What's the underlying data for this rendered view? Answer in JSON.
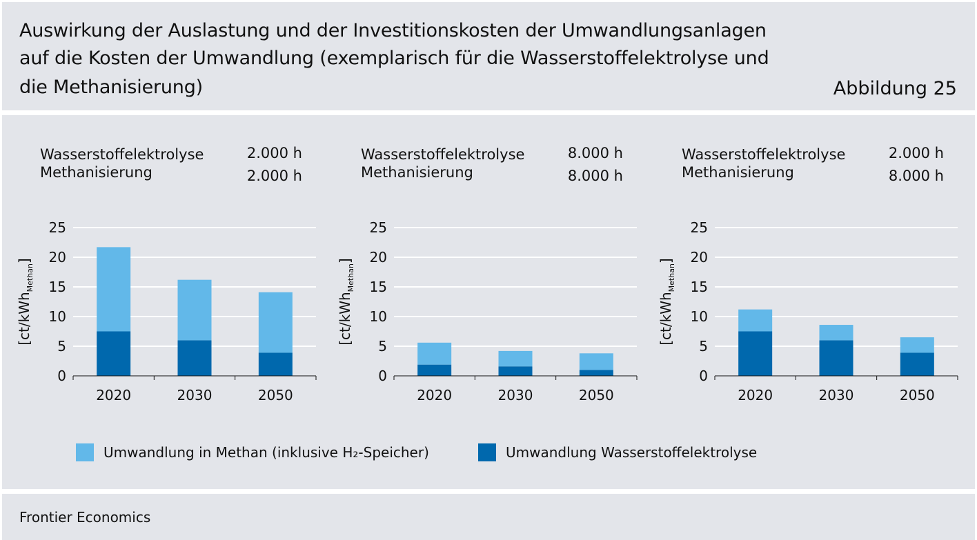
{
  "header": {
    "title_lines": [
      "Auswirkung der Auslastung und der Investitionskosten der Umwandlungsanlagen",
      "auf die Kosten der Umwandlung (exemplarisch für die Wasserstoffelektrolyse und",
      "die Methanisierung)"
    ],
    "figure_number": "Abbildung 25"
  },
  "colors": {
    "methan": "#62b8e9",
    "elektrolyse": "#0068ad",
    "grid": "#ffffff",
    "axis": "#111111"
  },
  "chart_data": [
    {
      "type": "bar",
      "stacked": true,
      "scenario": [
        {
          "label": "Wasserstoffelektrolyse",
          "value": "2.000 h"
        },
        {
          "label": "Methanisierung",
          "value": "2.000 h"
        }
      ],
      "ylabel_main": "[ct/kWh",
      "ylabel_sub": "Methan",
      "ylabel_end": "]",
      "ylim": [
        0,
        25
      ],
      "yticks": [
        0,
        5,
        10,
        15,
        20,
        25
      ],
      "categories": [
        "2020",
        "2030",
        "2050"
      ],
      "series": [
        {
          "name": "Umwandlung Wasserstoffelektrolyse",
          "color_key": "elektrolyse",
          "values": [
            7.5,
            6.0,
            3.9
          ]
        },
        {
          "name": "Umwandlung in Methan (inklusive H₂-Speicher)",
          "color_key": "methan",
          "values": [
            14.2,
            10.2,
            10.2
          ]
        }
      ],
      "grid": true
    },
    {
      "type": "bar",
      "stacked": true,
      "scenario": [
        {
          "label": "Wasserstoffelektrolyse",
          "value": "8.000 h"
        },
        {
          "label": "Methanisierung",
          "value": "8.000 h"
        }
      ],
      "ylabel_main": "[ct/kWh",
      "ylabel_sub": "Methan",
      "ylabel_end": "]",
      "ylim": [
        0,
        25
      ],
      "yticks": [
        0,
        5,
        10,
        15,
        20,
        25
      ],
      "categories": [
        "2020",
        "2030",
        "2050"
      ],
      "series": [
        {
          "name": "Umwandlung Wasserstoffelektrolyse",
          "color_key": "elektrolyse",
          "values": [
            1.9,
            1.6,
            1.0
          ]
        },
        {
          "name": "Umwandlung in Methan (inklusive H₂-Speicher)",
          "color_key": "methan",
          "values": [
            3.7,
            2.6,
            2.8
          ]
        }
      ],
      "grid": true
    },
    {
      "type": "bar",
      "stacked": true,
      "scenario": [
        {
          "label": "Wasserstoffelektrolyse",
          "value": "2.000 h"
        },
        {
          "label": "Methanisierung",
          "value": "8.000 h"
        }
      ],
      "ylabel_main": "[ct/kWh",
      "ylabel_sub": "Methan",
      "ylabel_end": "]",
      "ylim": [
        0,
        25
      ],
      "yticks": [
        0,
        5,
        10,
        15,
        20,
        25
      ],
      "categories": [
        "2020",
        "2030",
        "2050"
      ],
      "series": [
        {
          "name": "Umwandlung Wasserstoffelektrolyse",
          "color_key": "elektrolyse",
          "values": [
            7.5,
            6.0,
            3.9
          ]
        },
        {
          "name": "Umwandlung in Methan (inklusive H₂-Speicher)",
          "color_key": "methan",
          "values": [
            3.7,
            2.6,
            2.6
          ]
        }
      ],
      "grid": true
    }
  ],
  "legend": [
    {
      "label": "Umwandlung in Methan (inklusive H₂-Speicher)",
      "color_key": "methan"
    },
    {
      "label": "Umwandlung Wasserstoffelektrolyse",
      "color_key": "elektrolyse"
    }
  ],
  "footer": {
    "source": "Frontier Economics"
  }
}
